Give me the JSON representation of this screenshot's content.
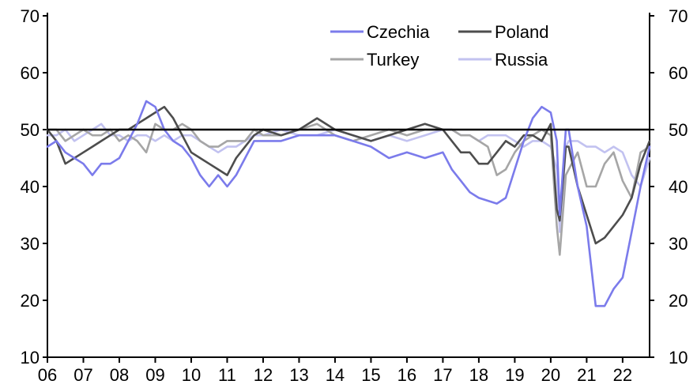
{
  "chart_data": {
    "type": "line",
    "title": "",
    "xlabel": "",
    "ylabel": "",
    "xlim": [
      2006.0,
      2022.75
    ],
    "ylim": [
      10,
      70
    ],
    "y_ticks": [
      10,
      20,
      30,
      40,
      50,
      60,
      70
    ],
    "y_tick_labels": [
      "10",
      "20",
      "30",
      "40",
      "50",
      "60",
      "70"
    ],
    "x_ticks": [
      2006,
      2007,
      2008,
      2009,
      2010,
      2011,
      2012,
      2013,
      2014,
      2015,
      2016,
      2017,
      2018,
      2019,
      2020,
      2021,
      2022
    ],
    "x_tick_labels": [
      "06",
      "07",
      "08",
      "09",
      "10",
      "11",
      "12",
      "13",
      "14",
      "15",
      "16",
      "17",
      "18",
      "19",
      "20",
      "21",
      "22"
    ],
    "dual_y_axis": true,
    "reference_line": 50,
    "grid": false,
    "legend_position": "top-right",
    "series": [
      {
        "name": "Czechia",
        "color": "#7B7BEB",
        "x": [
          2006.0,
          2006.25,
          2006.5,
          2006.75,
          2007.0,
          2007.25,
          2007.5,
          2007.75,
          2008.0,
          2008.25,
          2008.5,
          2008.75,
          2009.0,
          2009.25,
          2009.5,
          2009.75,
          2010.0,
          2010.25,
          2010.5,
          2010.75,
          2011.0,
          2011.25,
          2011.5,
          2011.75,
          2012.0,
          2012.5,
          2013.0,
          2013.5,
          2014.0,
          2014.5,
          2015.0,
          2015.5,
          2016.0,
          2016.5,
          2017.0,
          2017.25,
          2017.5,
          2017.75,
          2018.0,
          2018.25,
          2018.5,
          2018.75,
          2019.0,
          2019.25,
          2019.5,
          2019.75,
          2020.0,
          2020.17,
          2020.25,
          2020.42,
          2020.5,
          2020.75,
          2021.0,
          2021.25,
          2021.5,
          2021.75,
          2022.0,
          2022.25,
          2022.5,
          2022.75
        ],
        "values": [
          47,
          48,
          46,
          45,
          44,
          42,
          44,
          44,
          45,
          48,
          51,
          55,
          54,
          50,
          48,
          47,
          45,
          42,
          40,
          42,
          40,
          42,
          45,
          48,
          48,
          48,
          49,
          49,
          49,
          48,
          47,
          45,
          46,
          45,
          46,
          43,
          41,
          39,
          38,
          37.5,
          37,
          38,
          43,
          48,
          52,
          54,
          53,
          48,
          35,
          50,
          50,
          40,
          33,
          19,
          19,
          22,
          24,
          32,
          40,
          47
        ]
      },
      {
        "name": "Poland",
        "color": "#4d4d4d",
        "x": [
          2006.0,
          2006.25,
          2006.5,
          2006.75,
          2007.0,
          2007.25,
          2007.5,
          2007.75,
          2008.0,
          2008.25,
          2008.5,
          2008.75,
          2009.0,
          2009.25,
          2009.5,
          2009.75,
          2010.0,
          2010.25,
          2010.5,
          2010.75,
          2011.0,
          2011.25,
          2011.5,
          2011.75,
          2012.0,
          2012.5,
          2013.0,
          2013.5,
          2014.0,
          2014.5,
          2015.0,
          2015.5,
          2016.0,
          2016.5,
          2017.0,
          2017.25,
          2017.5,
          2017.75,
          2018.0,
          2018.25,
          2018.5,
          2018.75,
          2019.0,
          2019.25,
          2019.5,
          2019.75,
          2020.0,
          2020.17,
          2020.25,
          2020.42,
          2020.5,
          2020.75,
          2021.0,
          2021.25,
          2021.5,
          2021.75,
          2022.0,
          2022.25,
          2022.5,
          2022.75
        ],
        "values": [
          50,
          48,
          44,
          45,
          46,
          47,
          48,
          49,
          50,
          50,
          51,
          52,
          53,
          54,
          52,
          49,
          46,
          45,
          44,
          43,
          42,
          45,
          47,
          49,
          50,
          49,
          50,
          52,
          50,
          49,
          48,
          49,
          50,
          51,
          50,
          48,
          46,
          46,
          44,
          44,
          46,
          48,
          47,
          49,
          49,
          48,
          51,
          36,
          34,
          47,
          47,
          40,
          35,
          30,
          31,
          33,
          35,
          38,
          44,
          48
        ]
      },
      {
        "name": "Turkey",
        "color": "#a6a6a6",
        "x": [
          2006.0,
          2006.25,
          2006.5,
          2006.75,
          2007.0,
          2007.25,
          2007.5,
          2007.75,
          2008.0,
          2008.25,
          2008.5,
          2008.75,
          2009.0,
          2009.25,
          2009.5,
          2009.75,
          2010.0,
          2010.25,
          2010.5,
          2010.75,
          2011.0,
          2011.25,
          2011.5,
          2011.75,
          2012.0,
          2012.5,
          2013.0,
          2013.5,
          2014.0,
          2014.5,
          2015.0,
          2015.5,
          2016.0,
          2016.5,
          2017.0,
          2017.25,
          2017.5,
          2017.75,
          2018.0,
          2018.25,
          2018.5,
          2018.75,
          2019.0,
          2019.25,
          2019.5,
          2019.75,
          2020.0,
          2020.17,
          2020.25,
          2020.42,
          2020.5,
          2020.75,
          2021.0,
          2021.25,
          2021.5,
          2021.75,
          2022.0,
          2022.25,
          2022.5,
          2022.75
        ],
        "values": [
          50,
          50,
          48,
          49,
          50,
          49,
          49,
          50,
          48,
          49,
          48,
          46,
          51,
          50,
          50,
          51,
          50,
          48,
          47,
          47,
          48,
          48,
          48,
          50,
          49,
          49,
          50,
          51,
          49,
          48,
          49,
          50,
          49,
          50,
          50,
          50,
          49,
          49,
          48,
          47,
          42,
          43,
          46,
          48,
          49,
          50,
          49,
          33,
          28,
          42,
          43,
          46,
          40,
          40,
          44,
          46,
          41,
          38,
          46,
          47
        ]
      },
      {
        "name": "Russia",
        "color": "#c2c2f0",
        "x": [
          2006.0,
          2006.25,
          2006.5,
          2006.75,
          2007.0,
          2007.25,
          2007.5,
          2007.75,
          2008.0,
          2008.25,
          2008.5,
          2008.75,
          2009.0,
          2009.25,
          2009.5,
          2009.75,
          2010.0,
          2010.25,
          2010.5,
          2010.75,
          2011.0,
          2011.25,
          2011.5,
          2011.75,
          2012.0,
          2012.5,
          2013.0,
          2013.5,
          2014.0,
          2014.5,
          2015.0,
          2015.5,
          2016.0,
          2016.5,
          2017.0,
          2017.25,
          2017.5,
          2017.75,
          2018.0,
          2018.25,
          2018.5,
          2018.75,
          2019.0,
          2019.25,
          2019.5,
          2019.75,
          2020.0,
          2020.17,
          2020.25,
          2020.42,
          2020.5,
          2020.75,
          2021.0,
          2021.25,
          2021.5,
          2021.75,
          2022.0,
          2022.25,
          2022.5,
          2022.75
        ],
        "values": [
          49,
          49,
          50,
          48,
          49,
          50,
          51,
          49,
          49,
          48,
          49,
          49,
          48,
          49,
          48,
          49,
          49,
          48,
          47,
          46,
          47,
          47,
          48,
          49,
          49,
          50,
          49,
          49,
          50,
          49,
          48,
          49,
          48,
          49,
          50,
          50,
          49,
          49,
          48,
          49,
          49,
          49,
          48,
          47,
          48,
          48,
          47,
          43,
          32,
          47,
          48,
          48,
          47,
          47,
          46,
          47,
          46,
          42,
          40,
          45
        ]
      }
    ]
  }
}
